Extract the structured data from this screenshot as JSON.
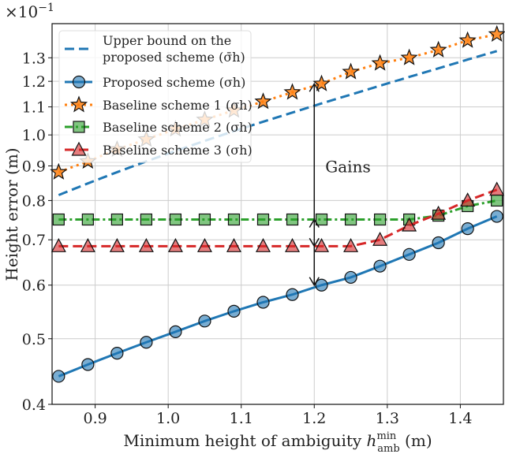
{
  "chart_data": {
    "type": "line",
    "title": "",
    "xlabel": "Minimum height of ambiguity h_amb^min (m)",
    "xlabel_main": "Minimum height of ambiguity ",
    "xlabel_sym": "h",
    "xlabel_sup": "min",
    "xlabel_sub": "amb",
    "xlabel_unit": " (m)",
    "ylabel": "Height error (m)",
    "y_multiplier": "×10",
    "y_multiplier_exp": "−1",
    "yscale": "log",
    "xlim": [
      0.841,
      1.459
    ],
    "ylim": [
      0.4,
      1.46
    ],
    "grid": true,
    "legend_position": "top-left",
    "xticks": [
      "0.9",
      "1.0",
      "1.1",
      "1.2",
      "1.3",
      "1.4"
    ],
    "yticks": [
      "0.4",
      "0.5",
      "0.6",
      "0.7",
      "0.8",
      "0.9",
      "1.0",
      "1.1",
      "1.2",
      "1.3"
    ],
    "x": [
      0.85,
      0.89,
      0.93,
      0.97,
      1.01,
      1.05,
      1.09,
      1.13,
      1.17,
      1.21,
      1.25,
      1.29,
      1.33,
      1.37,
      1.41,
      1.45
    ],
    "series": [
      {
        "name": "Upper bound on the proposed scheme (σ̄h)",
        "legend_line1": "Upper bound on the",
        "legend_line2": "proposed scheme (σ̄h)",
        "color": "#1f77b4",
        "style": "dashed",
        "marker": "none",
        "values": [
          0.815,
          0.848,
          0.881,
          0.914,
          0.947,
          0.98,
          1.013,
          1.046,
          1.079,
          1.113,
          1.147,
          1.182,
          1.218,
          1.254,
          1.292,
          1.33
        ]
      },
      {
        "name": "Proposed scheme (σh)",
        "color": "#1f77b4",
        "style": "solid",
        "marker": "circle",
        "values": [
          0.44,
          0.458,
          0.476,
          0.494,
          0.512,
          0.531,
          0.549,
          0.566,
          0.581,
          0.6,
          0.616,
          0.64,
          0.666,
          0.693,
          0.727,
          0.758
        ]
      },
      {
        "name": "Baseline scheme 1 (σh)",
        "color": "#ff7f0e",
        "style": "dotted",
        "marker": "star",
        "values": [
          0.881,
          0.914,
          0.952,
          0.985,
          1.02,
          1.053,
          1.087,
          1.12,
          1.156,
          1.19,
          1.239,
          1.276,
          1.3,
          1.335,
          1.379,
          1.408
        ]
      },
      {
        "name": "Baseline scheme 2 (σh)",
        "color": "#2ca02c",
        "style": "dashdot",
        "marker": "square",
        "values": [
          0.75,
          0.75,
          0.75,
          0.75,
          0.75,
          0.75,
          0.75,
          0.75,
          0.75,
          0.75,
          0.75,
          0.75,
          0.75,
          0.76,
          0.785,
          0.8
        ]
      },
      {
        "name": "Baseline scheme 3 (σh)",
        "color": "#d62728",
        "style": "dashed",
        "marker": "triangle",
        "values": [
          0.685,
          0.685,
          0.685,
          0.685,
          0.685,
          0.685,
          0.685,
          0.685,
          0.685,
          0.685,
          0.685,
          0.7,
          0.735,
          0.765,
          0.8,
          0.83
        ]
      }
    ],
    "annotations": [
      {
        "text": "Gains",
        "x": 1.2,
        "y_from": 0.6,
        "y_to": 1.19
      }
    ]
  }
}
